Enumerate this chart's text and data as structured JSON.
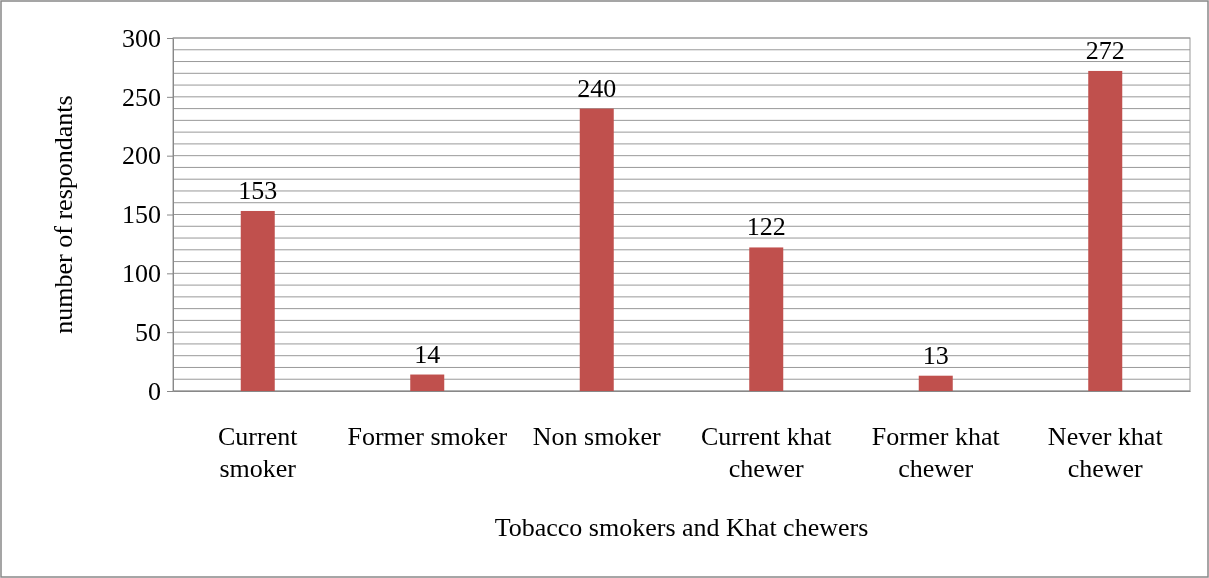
{
  "chart_data": {
    "type": "bar",
    "xlabel": "Tobacco smokers and Khat chewers",
    "ylabel": "number of respondants",
    "categories": [
      "Current smoker",
      "Former smoker",
      "Non smoker",
      "Current khat chewer",
      "Former khat chewer",
      "Never khat chewer"
    ],
    "values": [
      153,
      14,
      240,
      122,
      13,
      272
    ],
    "color": "#c0504d",
    "ylim": [
      0,
      300
    ],
    "yticks": [
      0,
      {
        "value": 10,
        "label": null
      },
      {
        "value": 20,
        "label": null
      },
      {
        "value": 30,
        "label": null
      },
      {
        "value": 40,
        "label": null
      },
      50,
      {
        "value": 60,
        "label": null
      },
      {
        "value": 70,
        "label": null
      },
      {
        "value": 80,
        "label": null
      },
      {
        "value": 90,
        "label": null
      },
      100,
      {
        "value": 110,
        "label": null
      },
      {
        "value": 120,
        "label": null
      },
      {
        "value": 130,
        "label": null
      },
      {
        "value": 140,
        "label": null
      },
      150,
      {
        "value": 160,
        "label": null
      },
      {
        "value": 170,
        "label": null
      },
      {
        "value": 180,
        "label": null
      },
      {
        "value": 190,
        "label": null
      },
      200,
      {
        "value": 210,
        "label": null
      },
      {
        "value": 220,
        "label": null
      },
      {
        "value": 230,
        "label": null
      },
      {
        "value": 240,
        "label": null
      },
      250,
      {
        "value": 260,
        "label": null
      },
      {
        "value": 270,
        "label": null
      },
      {
        "value": 280,
        "label": null
      },
      {
        "value": 290,
        "label": null
      },
      300
    ],
    "grid": true,
    "data_labels": true
  }
}
